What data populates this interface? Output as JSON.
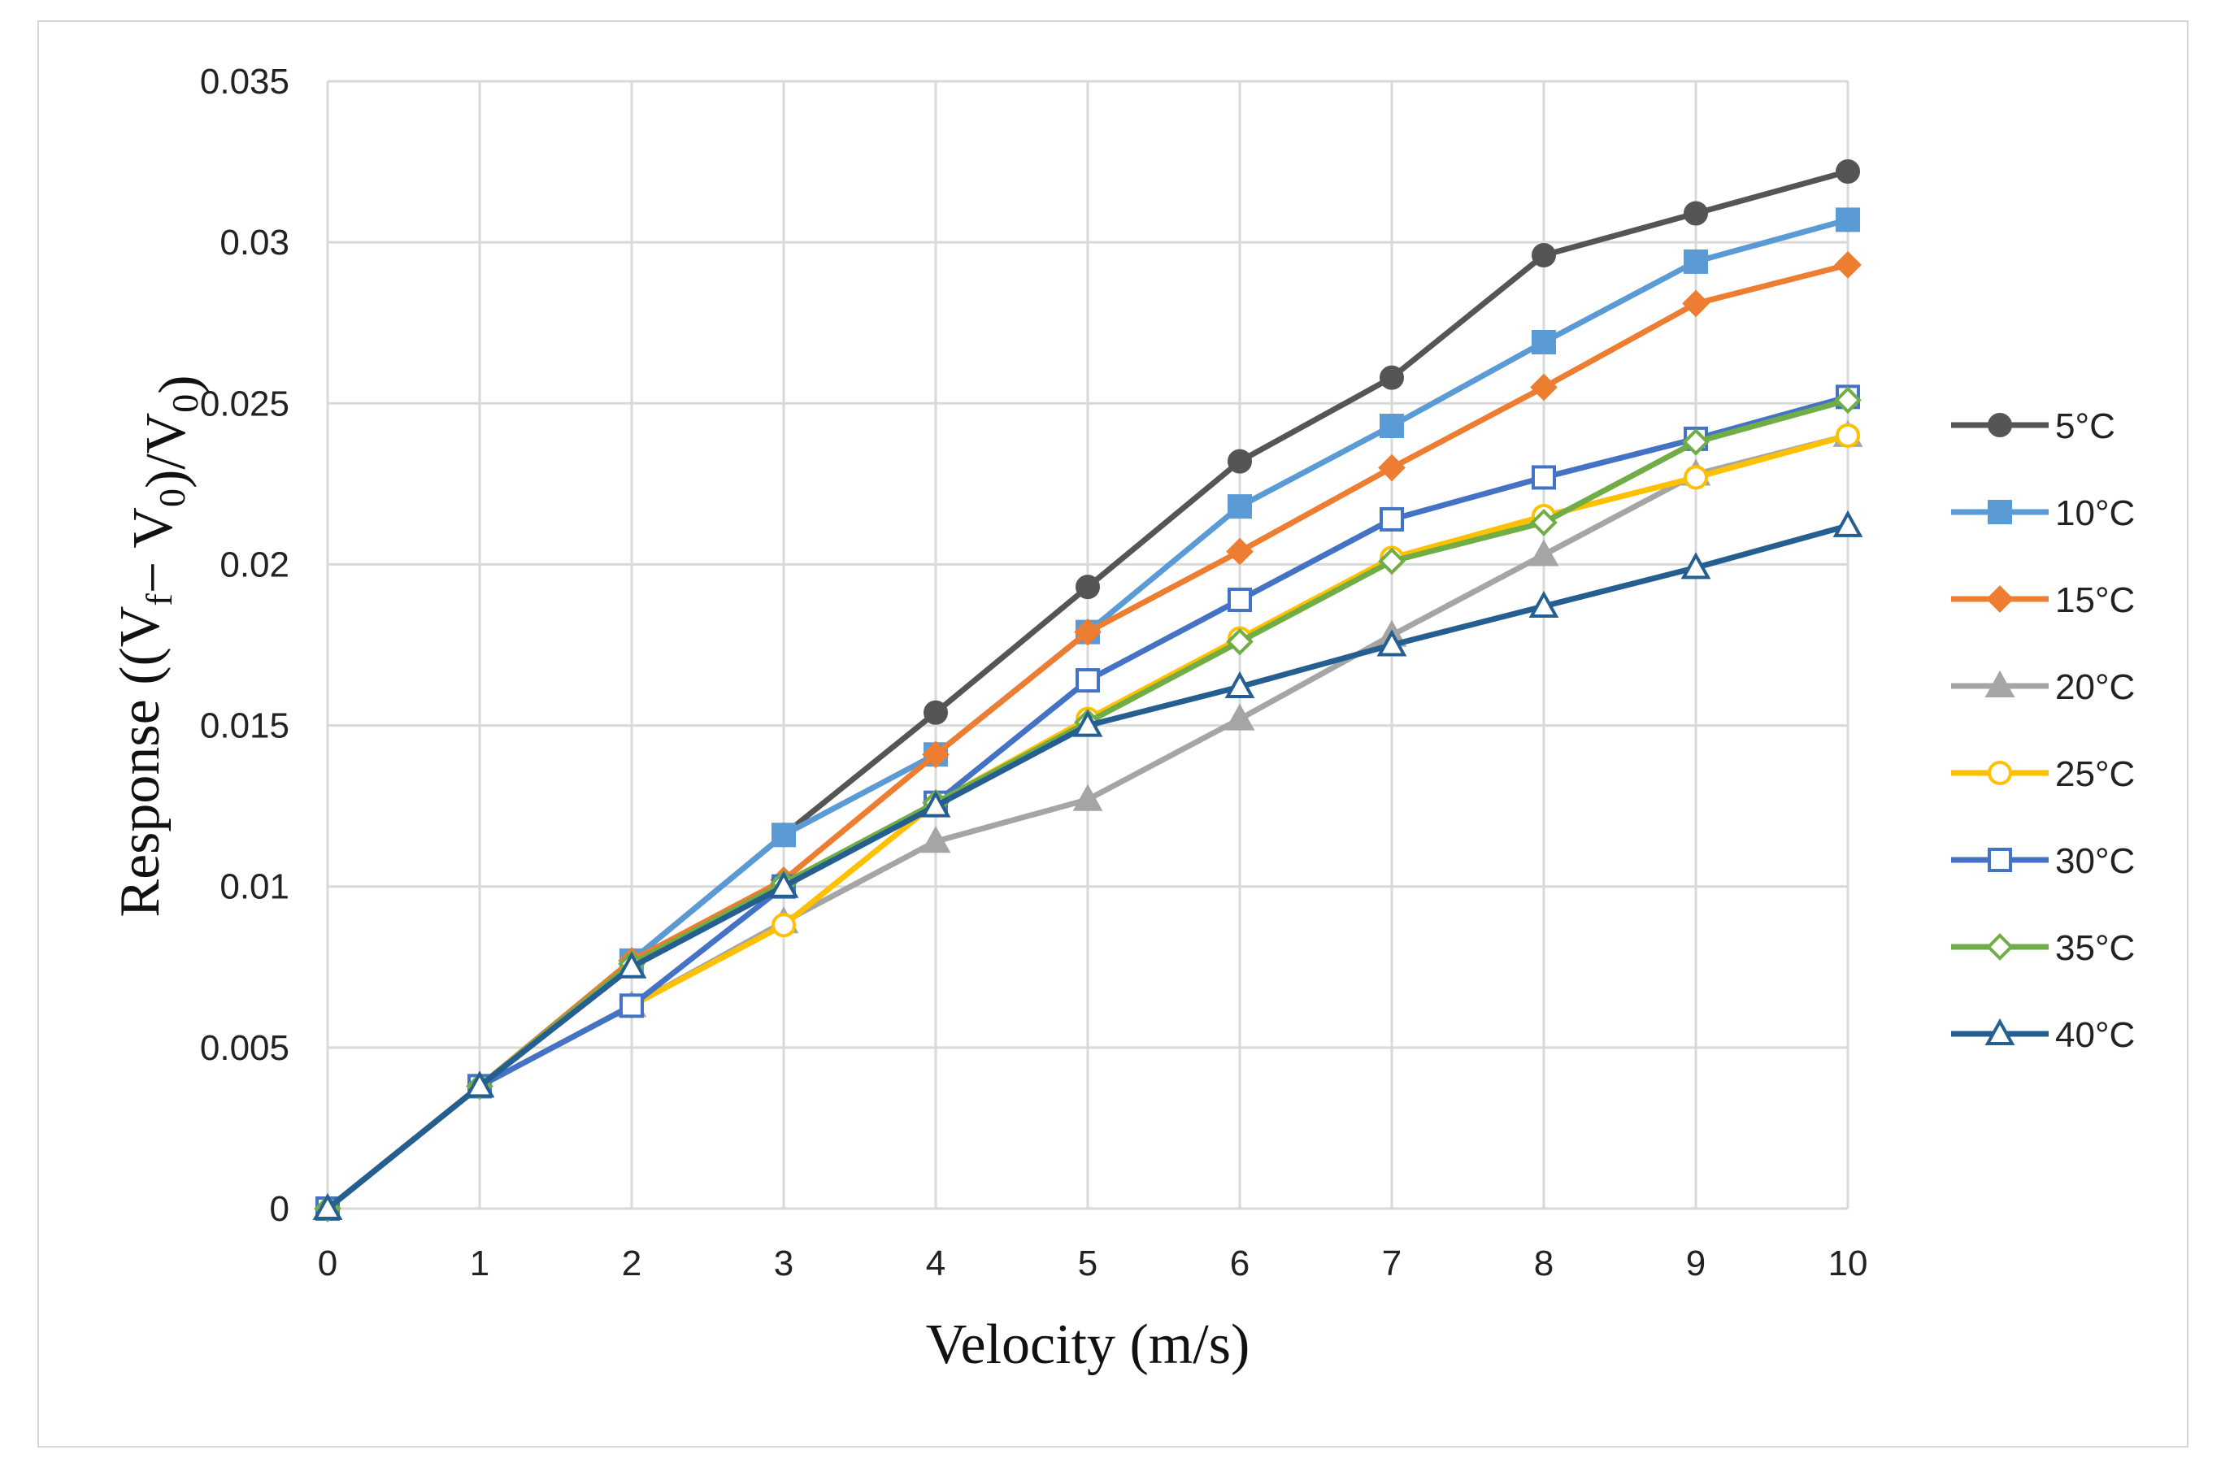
{
  "chart_data": {
    "type": "line",
    "title": "",
    "xlabel": "Velocity (m/s)",
    "ylabel": {
      "prefix": "Response ((V",
      "sub1": "f",
      "mid1": "− V",
      "sub2": "0",
      "mid2": ")/V",
      "sub3": "0",
      "suffix": ")"
    },
    "x": [
      0,
      1,
      2,
      3,
      4,
      5,
      6,
      7,
      8,
      9,
      10
    ],
    "xlim": [
      0,
      10
    ],
    "ylim": [
      0,
      0.035
    ],
    "xticks": [
      "0",
      "1",
      "2",
      "3",
      "4",
      "5",
      "6",
      "7",
      "8",
      "9",
      "10"
    ],
    "yticks": [
      {
        "value": 0,
        "label": "0"
      },
      {
        "value": 0.005,
        "label": "0.005"
      },
      {
        "value": 0.01,
        "label": "0.01"
      },
      {
        "value": 0.015,
        "label": "0.015"
      },
      {
        "value": 0.02,
        "label": "0.02"
      },
      {
        "value": 0.025,
        "label": "0.025"
      },
      {
        "value": 0.03,
        "label": "0.03"
      },
      {
        "value": 0.035,
        "label": "0.035"
      }
    ],
    "grid": true,
    "legend_position": "right",
    "series": [
      {
        "name": "5°C",
        "color": "#555555",
        "marker": "circle",
        "filled": true,
        "values": [
          0,
          0.0038,
          0.0077,
          0.0116,
          0.0154,
          0.0193,
          0.0232,
          0.0258,
          0.0296,
          0.0309,
          0.0322
        ]
      },
      {
        "name": "10°C",
        "color": "#5b9bd5",
        "marker": "square",
        "filled": true,
        "values": [
          0,
          0.0038,
          0.0077,
          0.0116,
          0.0141,
          0.0179,
          0.0218,
          0.0243,
          0.0269,
          0.0294,
          0.0307
        ]
      },
      {
        "name": "15°C",
        "color": "#ed7d31",
        "marker": "diamond",
        "filled": true,
        "values": [
          0,
          0.0038,
          0.0077,
          0.0102,
          0.0141,
          0.0179,
          0.0204,
          0.023,
          0.0255,
          0.0281,
          0.0293
        ]
      },
      {
        "name": "20°C",
        "color": "#a5a5a5",
        "marker": "triangle",
        "filled": true,
        "values": [
          0,
          0.0038,
          0.0063,
          0.0089,
          0.0114,
          0.0127,
          0.0152,
          0.0178,
          0.0203,
          0.0228,
          0.024
        ]
      },
      {
        "name": "25°C",
        "color": "#ffc000",
        "marker": "circle",
        "filled": false,
        "values": [
          0,
          0.0038,
          0.0063,
          0.0088,
          0.0126,
          0.0152,
          0.0177,
          0.0202,
          0.0215,
          0.0227,
          0.024
        ]
      },
      {
        "name": "30°C",
        "color": "#4472c4",
        "marker": "square",
        "filled": false,
        "values": [
          0,
          0.0038,
          0.0063,
          0.01,
          0.0126,
          0.0164,
          0.0189,
          0.0214,
          0.0227,
          0.0239,
          0.0252
        ]
      },
      {
        "name": "35°C",
        "color": "#70ad47",
        "marker": "diamond",
        "filled": false,
        "values": [
          0,
          0.0038,
          0.0076,
          0.0101,
          0.0126,
          0.0151,
          0.0176,
          0.0201,
          0.0213,
          0.0238,
          0.0251
        ]
      },
      {
        "name": "40°C",
        "color": "#255e91",
        "marker": "triangle",
        "filled": false,
        "values": [
          0,
          0.0038,
          0.0075,
          0.01,
          0.0125,
          0.015,
          0.0162,
          0.0175,
          0.0187,
          0.0199,
          0.0212
        ]
      }
    ]
  }
}
